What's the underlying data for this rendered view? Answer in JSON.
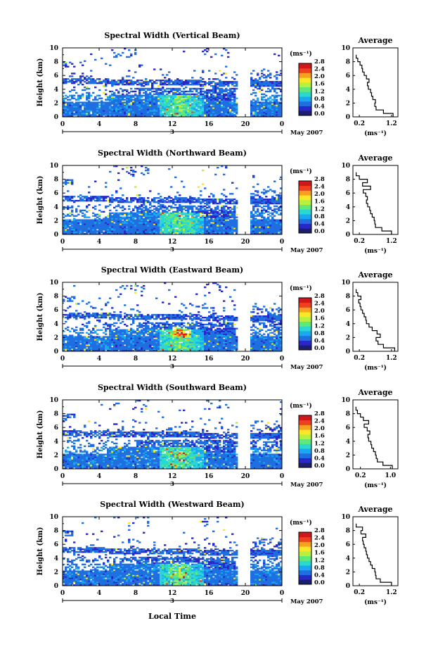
{
  "chart_data": {
    "type": "heatmap",
    "xlabel": "Local Time",
    "date_label": "May 2007",
    "day_label": "3",
    "x_ticks": [
      "0",
      "4",
      "8",
      "12",
      "16",
      "20",
      "0"
    ],
    "xlim": [
      0,
      24
    ],
    "y_ticks": [
      "0",
      "2",
      "4",
      "6",
      "8",
      "10"
    ],
    "ylim": [
      0,
      10
    ],
    "ylabel": "Height (km)",
    "colorbar": {
      "unit_label": "(ms⁻¹)",
      "ticks": [
        "2.8",
        "2.4",
        "2.0",
        "1.6",
        "1.2",
        "0.8",
        "0.4",
        "0.0"
      ],
      "range": [
        0,
        2.8
      ],
      "colors": [
        "#1e1e6e",
        "#2828c8",
        "#1f6fe0",
        "#1aa8f0",
        "#2ad8d0",
        "#60e878",
        "#b8f040",
        "#f8e828",
        "#f8a020",
        "#f04020",
        "#d01818"
      ]
    },
    "panels": [
      {
        "title": "Spectral Width (Vertical Beam)",
        "avg_title": "Average",
        "avg_ticks": [
          "0.2",
          "1.2"
        ],
        "avg_xlim": [
          0,
          1.4
        ],
        "avg_xlabel": "(ms⁻¹)",
        "avg_profile": {
          "height": [
            0,
            0.5,
            1,
            1.5,
            2,
            2.5,
            3,
            3.5,
            4,
            4.5,
            5,
            5.5,
            6,
            6.5,
            7,
            7.5,
            8,
            8.5
          ],
          "value": [
            1.25,
            0.95,
            0.72,
            0.68,
            0.7,
            0.62,
            0.58,
            0.55,
            0.48,
            0.45,
            0.5,
            0.42,
            0.35,
            0.3,
            0.28,
            0.22,
            0.15,
            0.1
          ]
        }
      },
      {
        "title": "Spectral Width (Northward Beam)",
        "avg_title": "Average",
        "avg_ticks": [
          "0.2",
          "1.2"
        ],
        "avg_xlim": [
          0,
          1.4
        ],
        "avg_xlabel": "(ms⁻¹)",
        "avg_profile": {
          "height": [
            0,
            0.5,
            1,
            1.5,
            2,
            2.5,
            3,
            3.5,
            4,
            4.5,
            5,
            5.5,
            6,
            6.5,
            7,
            7.5,
            8,
            8.5
          ],
          "value": [
            1.2,
            0.9,
            0.7,
            0.68,
            0.66,
            0.6,
            0.55,
            0.52,
            0.46,
            0.42,
            0.45,
            0.4,
            0.32,
            0.55,
            0.3,
            0.45,
            0.2,
            0.1
          ]
        }
      },
      {
        "title": "Spectral Width (Eastward Beam)",
        "avg_title": "Average",
        "avg_ticks": [
          "0.2",
          "1.2"
        ],
        "avg_xlim": [
          0,
          1.4
        ],
        "avg_xlabel": "(ms⁻¹)",
        "avg_profile": {
          "height": [
            0,
            0.5,
            1,
            1.5,
            2,
            2.5,
            3,
            3.5,
            4,
            4.5,
            5,
            5.5,
            6,
            6.5,
            7,
            7.5,
            8,
            8.5
          ],
          "value": [
            1.3,
            0.95,
            0.78,
            0.72,
            0.85,
            0.75,
            0.6,
            0.5,
            0.42,
            0.4,
            0.35,
            0.3,
            0.25,
            0.22,
            0.18,
            0.25,
            0.15,
            0.1
          ]
        }
      },
      {
        "title": "Spectral Width (Southward Beam)",
        "avg_title": "Average",
        "avg_ticks": [
          "0.2",
          "1.0"
        ],
        "avg_xlim": [
          0,
          1.2
        ],
        "avg_xlabel": "(ms⁻¹)",
        "avg_profile": {
          "height": [
            0,
            0.5,
            1,
            1.5,
            2,
            2.5,
            3,
            3.5,
            4,
            4.5,
            5,
            5.5,
            6,
            6.5,
            7,
            7.5,
            8,
            8.5
          ],
          "value": [
            1.05,
            0.8,
            0.65,
            0.62,
            0.6,
            0.55,
            0.5,
            0.48,
            0.42,
            0.4,
            0.45,
            0.38,
            0.3,
            0.42,
            0.28,
            0.2,
            0.12,
            0.08
          ]
        }
      },
      {
        "title": "Spectral Width (Westward Beam)",
        "avg_title": "Average",
        "avg_ticks": [
          "0.2",
          "1.2"
        ],
        "avg_xlim": [
          0,
          1.4
        ],
        "avg_xlabel": "(ms⁻¹)",
        "avg_profile": {
          "height": [
            0,
            0.5,
            1,
            1.5,
            2,
            2.5,
            3,
            3.5,
            4,
            4.5,
            5,
            5.5,
            6,
            6.5,
            7,
            7.5,
            8,
            8.5
          ],
          "value": [
            1.2,
            0.85,
            0.72,
            0.7,
            0.68,
            0.6,
            0.55,
            0.5,
            0.45,
            0.42,
            0.4,
            0.35,
            0.32,
            0.3,
            0.4,
            0.25,
            0.3,
            0.1
          ]
        }
      }
    ]
  }
}
